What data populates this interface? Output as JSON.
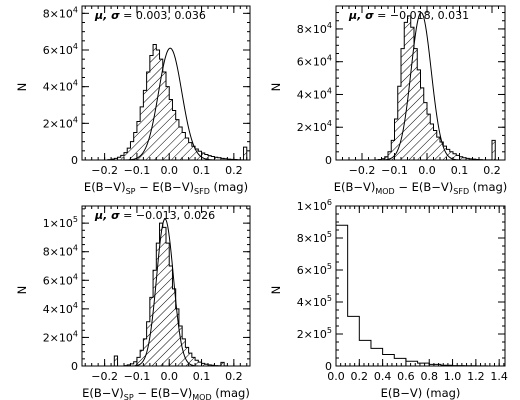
{
  "chart_data": [
    {
      "type": "histogram",
      "panel": "top-left",
      "xlabel": {
        "main": "E(B−V)",
        "sub1": "SP",
        "mid": " − E(B−V)",
        "sub2": "SFD",
        "tail": " (mag)"
      },
      "ylabel": "N",
      "annotation": {
        "sym": "μ, σ",
        "text": " = 0.003, 0.036"
      },
      "xlim": [
        -0.27,
        0.25
      ],
      "ylim": [
        0,
        84000
      ],
      "xticks": [
        -0.2,
        -0.1,
        0.0,
        0.1,
        0.2
      ],
      "xticklabels": [
        "−0.2",
        "−0.1",
        "0.0",
        "0.1",
        "0.2"
      ],
      "yticks": [
        {
          "v": 0,
          "m": "0",
          "e": ""
        },
        {
          "v": 20000,
          "m": "2×10",
          "e": "4"
        },
        {
          "v": 40000,
          "m": "4×10",
          "e": "4"
        },
        {
          "v": 60000,
          "m": "6×10",
          "e": "4"
        },
        {
          "v": 80000,
          "m": "8×10",
          "e": "4"
        }
      ],
      "hatched": true,
      "bin_start": -0.27,
      "bin_width": 0.01,
      "counts": [
        0,
        0,
        0,
        0,
        0,
        0,
        0,
        0,
        200,
        500,
        900,
        1500,
        2500,
        4000,
        6500,
        10000,
        15000,
        21000,
        29000,
        38000,
        48000,
        57000,
        63000,
        60000,
        55000,
        48000,
        40000,
        33000,
        27000,
        22000,
        18000,
        15000,
        12000,
        9500,
        7500,
        6000,
        4800,
        3800,
        3000,
        2400,
        1900,
        1500,
        1200,
        900,
        700,
        500,
        350,
        250,
        150,
        100,
        7000,
        0
      ],
      "gaussian": {
        "mu": 0.003,
        "sigma": 0.036,
        "peak": 61000
      }
    },
    {
      "type": "histogram",
      "panel": "top-right",
      "xlabel": {
        "main": "E(B−V)",
        "sub1": "MOD",
        "mid": " − E(B−V)",
        "sub2": "SFD",
        "tail": " (mag)"
      },
      "ylabel": "N",
      "annotation": {
        "sym": "μ, σ",
        "text": " = −0.018, 0.031"
      },
      "xlim": [
        -0.28,
        0.24
      ],
      "ylim": [
        0,
        94000
      ],
      "xticks": [
        -0.2,
        -0.1,
        0.0,
        0.1,
        0.2
      ],
      "xticklabels": [
        "−0.2",
        "−0.1",
        "0.0",
        "0.1",
        "0.2"
      ],
      "yticks": [
        {
          "v": 0,
          "m": "0",
          "e": ""
        },
        {
          "v": 20000,
          "m": "2×10",
          "e": "4"
        },
        {
          "v": 40000,
          "m": "4×10",
          "e": "4"
        },
        {
          "v": 60000,
          "m": "6×10",
          "e": "4"
        },
        {
          "v": 80000,
          "m": "8×10",
          "e": "4"
        }
      ],
      "hatched": true,
      "bin_start": -0.28,
      "bin_width": 0.01,
      "counts": [
        0,
        0,
        0,
        0,
        0,
        0,
        0,
        0,
        0,
        0,
        0,
        0,
        100,
        300,
        800,
        2000,
        5000,
        12000,
        25000,
        45000,
        68000,
        84000,
        88000,
        81000,
        68000,
        55000,
        44000,
        35000,
        28000,
        22000,
        18000,
        14000,
        11000,
        8500,
        6500,
        5000,
        3800,
        2800,
        2000,
        1400,
        1000,
        700,
        500,
        300,
        200,
        100,
        100,
        100,
        12000,
        0,
        0,
        0
      ],
      "gaussian": {
        "mu": -0.018,
        "sigma": 0.031,
        "peak": 90000
      }
    },
    {
      "type": "histogram",
      "panel": "bottom-left",
      "xlabel": {
        "main": "E(B−V)",
        "sub1": "SP",
        "mid": " − E(B−V)",
        "sub2": "MOD",
        "tail": " (mag)"
      },
      "ylabel": "N",
      "annotation": {
        "sym": "μ, σ",
        "text": " = −0.013, 0.026"
      },
      "xlim": [
        -0.27,
        0.25
      ],
      "ylim": [
        0,
        112000
      ],
      "xticks": [
        -0.2,
        -0.1,
        0.0,
        0.1,
        0.2
      ],
      "xticklabels": [
        "−0.2",
        "−0.1",
        "0.0",
        "0.1",
        "0.2"
      ],
      "yticks": [
        {
          "v": 0,
          "m": "0",
          "e": ""
        },
        {
          "v": 20000,
          "m": "2×10",
          "e": "4"
        },
        {
          "v": 40000,
          "m": "4×10",
          "e": "4"
        },
        {
          "v": 60000,
          "m": "6×10",
          "e": "4"
        },
        {
          "v": 80000,
          "m": "8×10",
          "e": "4"
        },
        {
          "v": 100000,
          "m": "1×10",
          "e": "5"
        }
      ],
      "hatched": true,
      "bin_start": -0.27,
      "bin_width": 0.01,
      "counts": [
        0,
        0,
        0,
        0,
        0,
        0,
        0,
        0,
        0,
        0,
        7000,
        0,
        0,
        300,
        800,
        1500,
        3000,
        6000,
        11000,
        19000,
        31000,
        48000,
        67000,
        86000,
        100000,
        97000,
        86000,
        70000,
        54000,
        40000,
        28000,
        19000,
        13000,
        9000,
        6000,
        4000,
        2700,
        1800,
        1200,
        800,
        500,
        300,
        200,
        2500,
        100,
        0,
        0,
        0,
        0,
        0,
        0,
        0
      ],
      "gaussian": {
        "mu": -0.013,
        "sigma": 0.026,
        "peak": 103000
      }
    },
    {
      "type": "histogram",
      "panel": "bottom-right",
      "xlabel": {
        "main": "E(B−V) (mag)",
        "sub1": "",
        "mid": "",
        "sub2": "",
        "tail": ""
      },
      "ylabel": "N",
      "annotation": null,
      "xlim": [
        0.0,
        1.45
      ],
      "ylim": [
        0,
        1000000
      ],
      "xticks": [
        0.0,
        0.2,
        0.4,
        0.6,
        0.8,
        1.0,
        1.2,
        1.4
      ],
      "xticklabels": [
        "0.0",
        "0.2",
        "0.4",
        "0.6",
        "0.8",
        "1.0",
        "1.2",
        "1.4"
      ],
      "yticks": [
        {
          "v": 0,
          "m": "0",
          "e": ""
        },
        {
          "v": 200000,
          "m": "2×10",
          "e": "5"
        },
        {
          "v": 400000,
          "m": "4×10",
          "e": "5"
        },
        {
          "v": 600000,
          "m": "6×10",
          "e": "5"
        },
        {
          "v": 800000,
          "m": "8×10",
          "e": "5"
        },
        {
          "v": 1000000,
          "m": "1×10",
          "e": "6"
        }
      ],
      "hatched": false,
      "bin_start": 0.0,
      "bin_width": 0.1,
      "counts": [
        880000,
        310000,
        160000,
        110000,
        72000,
        48000,
        30000,
        18000,
        10000,
        5000,
        2500,
        1200,
        500,
        200
      ],
      "gaussian": null
    }
  ]
}
